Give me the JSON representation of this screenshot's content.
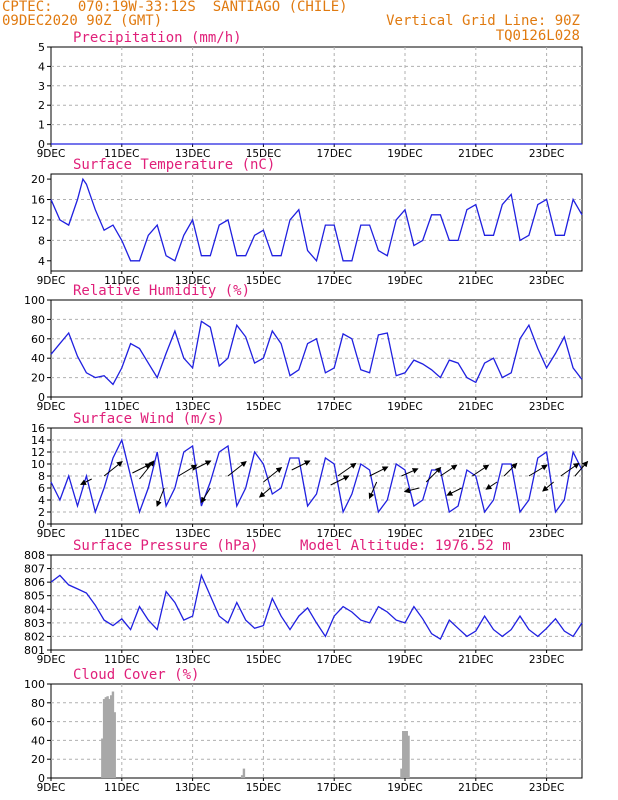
{
  "header": {
    "line1": "CPTEC:   070:19W-33:12S  SANTIAGO (CHILE)",
    "line2": "09DEC2020 90Z (GMT)",
    "right1": "Vertical Grid Line: 90Z",
    "right2": "TQ0126L028"
  },
  "colors": {
    "header": "#e07a10",
    "title": "#e0207a",
    "line": "#2020e0",
    "bar": "#a8a8a8",
    "grid": "#b0b0b0",
    "arrow": "#000000"
  },
  "x_axis": {
    "labels": [
      "9DEC",
      "11DEC",
      "13DEC",
      "15DEC",
      "17DEC",
      "19DEC",
      "21DEC",
      "23DEC"
    ],
    "positions": [
      0,
      2,
      4,
      6,
      8,
      10,
      12,
      14
    ],
    "range": [
      0,
      15
    ]
  },
  "chart_data": [
    {
      "type": "line",
      "title": "Precipitation (mm/h)",
      "ylim": [
        0,
        5
      ],
      "yticks": [
        0,
        1,
        2,
        3,
        4,
        5
      ],
      "x": [
        0,
        15
      ],
      "values": [
        0,
        0
      ]
    },
    {
      "type": "line",
      "title": "Surface Temperature (nC)",
      "ylim": [
        2,
        21
      ],
      "yticks": [
        4,
        8,
        12,
        16,
        20
      ],
      "x": [
        0.0,
        0.25,
        0.5,
        0.75,
        0.9,
        1.0,
        1.25,
        1.5,
        1.75,
        2.0,
        2.25,
        2.5,
        2.75,
        3.0,
        3.25,
        3.5,
        3.75,
        4.0,
        4.25,
        4.5,
        4.75,
        5.0,
        5.25,
        5.5,
        5.75,
        6.0,
        6.25,
        6.5,
        6.75,
        7.0,
        7.25,
        7.5,
        7.75,
        8.0,
        8.25,
        8.5,
        8.75,
        9.0,
        9.25,
        9.5,
        9.75,
        10.0,
        10.25,
        10.5,
        10.75,
        11.0,
        11.25,
        11.5,
        11.75,
        12.0,
        12.25,
        12.5,
        12.75,
        13.0,
        13.25,
        13.5,
        13.75,
        14.0,
        14.25,
        14.5,
        14.75,
        15.0
      ],
      "values": [
        16,
        12,
        11,
        16,
        20,
        19,
        14,
        10,
        11,
        8,
        4,
        4,
        9,
        11,
        5,
        4,
        9,
        12,
        5,
        5,
        11,
        12,
        5,
        5,
        9,
        10,
        5,
        5,
        12,
        14,
        6,
        4,
        11,
        11,
        4,
        4,
        11,
        11,
        6,
        5,
        12,
        14,
        7,
        8,
        13,
        13,
        8,
        8,
        14,
        15,
        9,
        9,
        15,
        17,
        8,
        9,
        15,
        16,
        9,
        9,
        16,
        13
      ]
    },
    {
      "type": "line",
      "title": "Relative Humidity (%)",
      "ylim": [
        0,
        100
      ],
      "yticks": [
        0,
        20,
        40,
        60,
        80,
        100
      ],
      "x": [
        0.0,
        0.25,
        0.5,
        0.75,
        1.0,
        1.25,
        1.5,
        1.75,
        2.0,
        2.25,
        2.5,
        2.75,
        3.0,
        3.25,
        3.5,
        3.75,
        4.0,
        4.25,
        4.5,
        4.75,
        5.0,
        5.25,
        5.5,
        5.75,
        6.0,
        6.25,
        6.5,
        6.75,
        7.0,
        7.25,
        7.5,
        7.75,
        8.0,
        8.25,
        8.5,
        8.75,
        9.0,
        9.25,
        9.5,
        9.75,
        10.0,
        10.25,
        10.5,
        10.75,
        11.0,
        11.25,
        11.5,
        11.75,
        12.0,
        12.25,
        12.5,
        12.75,
        13.0,
        13.25,
        13.5,
        13.75,
        14.0,
        14.25,
        14.5,
        14.75,
        15.0
      ],
      "values": [
        44,
        55,
        66,
        42,
        25,
        20,
        22,
        13,
        30,
        55,
        50,
        35,
        20,
        45,
        68,
        40,
        30,
        78,
        72,
        32,
        40,
        74,
        62,
        35,
        40,
        68,
        55,
        22,
        28,
        55,
        60,
        25,
        30,
        65,
        60,
        28,
        25,
        64,
        66,
        22,
        25,
        38,
        34,
        28,
        20,
        38,
        35,
        20,
        15,
        35,
        40,
        20,
        25,
        60,
        74,
        50,
        30,
        45,
        62,
        30,
        18
      ]
    },
    {
      "type": "line",
      "title": "Surface Wind (m/s)",
      "ylim": [
        0,
        16
      ],
      "yticks": [
        0,
        2,
        4,
        6,
        8,
        10,
        12,
        14,
        16
      ],
      "x": [
        0.0,
        0.25,
        0.5,
        0.75,
        1.0,
        1.25,
        1.5,
        1.75,
        2.0,
        2.25,
        2.5,
        2.75,
        3.0,
        3.25,
        3.5,
        3.75,
        4.0,
        4.25,
        4.5,
        4.75,
        5.0,
        5.25,
        5.5,
        5.75,
        6.0,
        6.25,
        6.5,
        6.75,
        7.0,
        7.25,
        7.5,
        7.75,
        8.0,
        8.25,
        8.5,
        8.75,
        9.0,
        9.25,
        9.5,
        9.75,
        10.0,
        10.25,
        10.5,
        10.75,
        11.0,
        11.25,
        11.5,
        11.75,
        12.0,
        12.25,
        12.5,
        12.75,
        13.0,
        13.25,
        13.5,
        13.75,
        14.0,
        14.25,
        14.5,
        14.75,
        15.0
      ],
      "values": [
        7,
        4,
        8,
        3,
        8,
        2,
        6,
        11,
        14,
        8,
        2,
        6,
        12,
        3,
        6,
        12,
        13,
        3,
        7,
        12,
        13,
        3,
        6,
        12,
        10,
        5,
        6,
        11,
        11,
        3,
        5,
        11,
        10,
        2,
        5,
        10,
        9,
        2,
        4,
        10,
        9,
        3,
        4,
        9,
        9,
        2,
        3,
        9,
        8,
        2,
        4,
        10,
        10,
        2,
        4,
        11,
        12,
        2,
        4,
        12,
        9
      ],
      "arrows": [
        {
          "x": 1.5,
          "y": 8,
          "u": 1,
          "v": 0.8
        },
        {
          "x": 1.15,
          "y": 7.5,
          "u": -0.6,
          "v": -0.3
        },
        {
          "x": 2.3,
          "y": 8.5,
          "u": 1,
          "v": 0.5
        },
        {
          "x": 2.5,
          "y": 7.5,
          "u": 0.8,
          "v": 1
        },
        {
          "x": 3.6,
          "y": 8,
          "u": 1,
          "v": 0.6
        },
        {
          "x": 3.2,
          "y": 6,
          "u": -0.4,
          "v": -1
        },
        {
          "x": 4.0,
          "y": 9,
          "u": 1,
          "v": 0.5
        },
        {
          "x": 4.5,
          "y": 6,
          "u": -0.5,
          "v": -0.8
        },
        {
          "x": 5.0,
          "y": 8,
          "u": 1,
          "v": 0.8
        },
        {
          "x": 6.2,
          "y": 6,
          "u": -0.6,
          "v": -0.5
        },
        {
          "x": 6.0,
          "y": 7,
          "u": 1,
          "v": 0.8
        },
        {
          "x": 6.8,
          "y": 9,
          "u": 1,
          "v": 0.5
        },
        {
          "x": 7.9,
          "y": 6.5,
          "u": 1,
          "v": 0.5
        },
        {
          "x": 8.1,
          "y": 8,
          "u": 1,
          "v": 0.7
        },
        {
          "x": 9.0,
          "y": 8,
          "u": 1,
          "v": 0.5
        },
        {
          "x": 9.2,
          "y": 7,
          "u": -0.4,
          "v": -0.9
        },
        {
          "x": 9.9,
          "y": 8,
          "u": 0.9,
          "v": 0.4
        },
        {
          "x": 10.4,
          "y": 6,
          "u": -0.8,
          "v": -0.2
        },
        {
          "x": 10.6,
          "y": 7,
          "u": 0.8,
          "v": 0.8
        },
        {
          "x": 11.0,
          "y": 8,
          "u": 0.9,
          "v": 0.6
        },
        {
          "x": 11.6,
          "y": 6,
          "u": -0.8,
          "v": -0.4
        },
        {
          "x": 11.9,
          "y": 8,
          "u": 0.9,
          "v": 0.6
        },
        {
          "x": 12.6,
          "y": 7,
          "u": -0.6,
          "v": -0.4
        },
        {
          "x": 12.8,
          "y": 8,
          "u": 0.7,
          "v": 0.7
        },
        {
          "x": 13.5,
          "y": 8,
          "u": 1,
          "v": 0.6
        },
        {
          "x": 14.2,
          "y": 7,
          "u": -0.6,
          "v": -0.5
        },
        {
          "x": 14.4,
          "y": 8,
          "u": 1,
          "v": 0.7
        },
        {
          "x": 14.8,
          "y": 8,
          "u": 0.7,
          "v": 0.8
        }
      ]
    },
    {
      "type": "line",
      "title": "Surface Pressure (hPa)",
      "annotation": "Model Altitude: 1976.52 m",
      "ylim": [
        801,
        808
      ],
      "yticks": [
        801,
        802,
        803,
        804,
        805,
        806,
        807,
        808
      ],
      "x": [
        0.0,
        0.25,
        0.5,
        0.75,
        1.0,
        1.25,
        1.5,
        1.75,
        2.0,
        2.25,
        2.5,
        2.75,
        3.0,
        3.25,
        3.5,
        3.75,
        4.0,
        4.25,
        4.5,
        4.75,
        5.0,
        5.25,
        5.5,
        5.75,
        6.0,
        6.25,
        6.5,
        6.75,
        7.0,
        7.25,
        7.5,
        7.75,
        8.0,
        8.25,
        8.5,
        8.75,
        9.0,
        9.25,
        9.5,
        9.75,
        10.0,
        10.25,
        10.5,
        10.75,
        11.0,
        11.25,
        11.5,
        11.75,
        12.0,
        12.25,
        12.5,
        12.75,
        13.0,
        13.25,
        13.5,
        13.75,
        14.0,
        14.25,
        14.5,
        14.75,
        15.0
      ],
      "values": [
        806,
        806.5,
        805.8,
        805.5,
        805.2,
        804.3,
        803.2,
        802.8,
        803.3,
        802.5,
        804.2,
        803.2,
        802.5,
        805.3,
        804.5,
        803.2,
        803.5,
        806.5,
        805,
        803.5,
        803,
        804.5,
        803.2,
        802.6,
        802.8,
        804.8,
        803.5,
        802.5,
        803.5,
        804.1,
        803,
        802,
        803.5,
        804.2,
        803.8,
        803.2,
        803,
        804.2,
        803.8,
        803.2,
        803,
        804.2,
        803.3,
        802.2,
        801.8,
        803.2,
        802.6,
        802,
        802.4,
        803.5,
        802.5,
        802,
        802.5,
        803.5,
        802.5,
        802,
        802.6,
        803.3,
        802.4,
        802,
        803
      ]
    },
    {
      "type": "bar",
      "title": "Cloud Cover (%)",
      "ylim": [
        0,
        100
      ],
      "yticks": [
        0,
        20,
        40,
        60,
        80,
        100
      ],
      "x": [
        1.45,
        1.5,
        1.55,
        1.6,
        1.65,
        1.7,
        1.75,
        1.8,
        5.4,
        5.45,
        9.9,
        9.95,
        10.0,
        10.05,
        10.1
      ],
      "values": [
        42,
        84,
        86,
        87,
        84,
        88,
        92,
        70,
        3,
        10,
        10,
        50,
        50,
        50,
        45
      ]
    }
  ]
}
